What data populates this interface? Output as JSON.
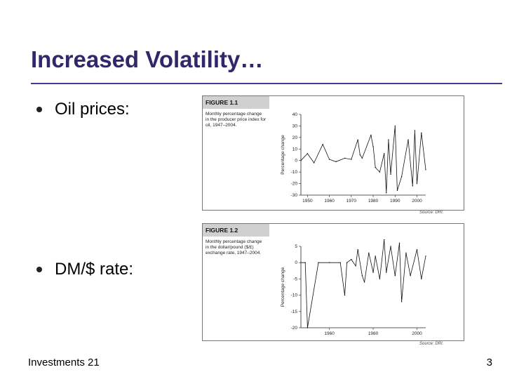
{
  "slide": {
    "title": "Increased Volatility…",
    "bullets": [
      "Oil prices:",
      "DM/$ rate:"
    ],
    "footer_left": "Investments 21",
    "page_number": "3"
  },
  "chart_data": [
    {
      "type": "line",
      "figure_label": "FIGURE 1.1",
      "caption": "Monthly percentage change in the producer price index for oil, 1947–2004.",
      "ylabel": "Percentage change",
      "xlabel": "",
      "source": "Source: DRI.",
      "x_ticks": [
        1950,
        1960,
        1970,
        1980,
        1990,
        2000
      ],
      "y_ticks": [
        40,
        30,
        20,
        10,
        0,
        -10,
        -20,
        -30
      ],
      "xlim": [
        1947,
        2004
      ],
      "ylim": [
        -30,
        40
      ],
      "series": [
        {
          "x": [
            1947,
            1950,
            1953,
            1957,
            1960,
            1963,
            1967,
            1970,
            1973,
            1974,
            1975,
            1979,
            1980,
            1981,
            1983,
            1985,
            1986,
            1987,
            1988,
            1990,
            1991,
            1993,
            1996,
            1998,
            1999,
            2000,
            2002,
            2004
          ],
          "y": [
            0,
            6,
            -2,
            14,
            1,
            -1,
            2,
            1,
            18,
            5,
            2,
            22,
            12,
            -6,
            -10,
            6,
            -28,
            18,
            -12,
            30,
            -26,
            -14,
            18,
            -22,
            26,
            -20,
            24,
            -8
          ]
        }
      ]
    },
    {
      "type": "line",
      "figure_label": "FIGURE 1.2",
      "caption": "Monthly percentage change in the dollar/pound ($/£) exchange rate, 1947–2004.",
      "ylabel": "Percentage change",
      "xlabel": "",
      "source": "Source: DRI.",
      "x_ticks": [
        1960,
        1980,
        2000
      ],
      "y_ticks": [
        5,
        0,
        -5,
        -10,
        -15,
        -20
      ],
      "xlim": [
        1947,
        2004
      ],
      "ylim": [
        -20,
        5
      ],
      "series": [
        {
          "x": [
            1947,
            1949,
            1950,
            1955,
            1960,
            1965,
            1967,
            1968,
            1970,
            1972,
            1973,
            1975,
            1976,
            1978,
            1980,
            1981,
            1983,
            1985,
            1986,
            1988,
            1990,
            1992,
            1993,
            1995,
            1997,
            2000,
            2002,
            2004
          ],
          "y": [
            0,
            0,
            -20,
            0,
            0,
            0,
            -10,
            0,
            1,
            -1,
            4,
            -4,
            -6,
            3,
            -3,
            2,
            -5,
            7,
            -3,
            5,
            -4,
            6,
            -12,
            3,
            -4,
            4,
            -5,
            2
          ]
        }
      ]
    }
  ]
}
